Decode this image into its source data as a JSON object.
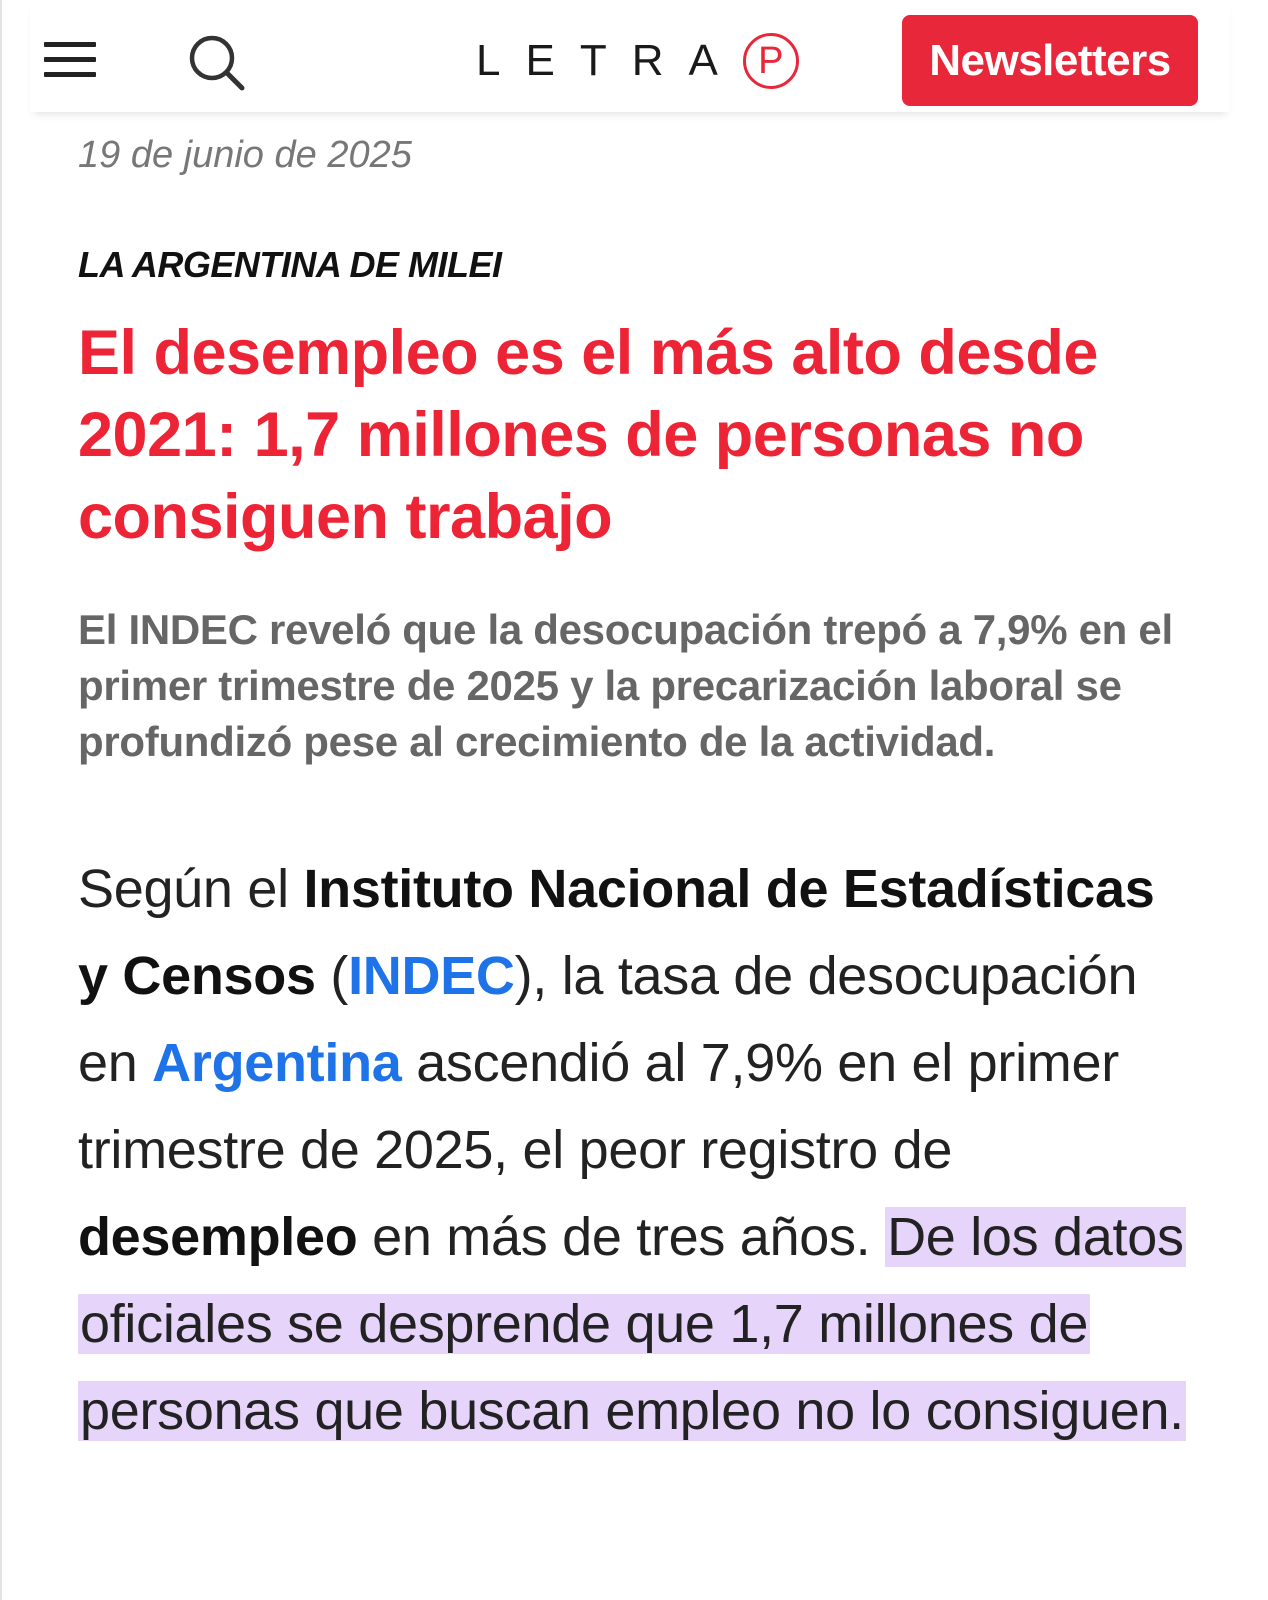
{
  "header": {
    "menu_icon": "hamburger-menu-icon",
    "search_icon": "search-icon",
    "logo": {
      "word": "LETRA",
      "mark": "P",
      "brand_color": "#e8273b"
    },
    "newsletter_label": "Newsletters"
  },
  "article": {
    "date": "19 de junio de 2025",
    "kicker": "LA ARGENTINA DE MILEI",
    "headline": "El desempleo es el más alto desde 2021: 1,7 millones de personas no consiguen trabajo",
    "lede": "El INDEC reveló que la desocupación trepó a 7,9% en el primer trimestre de 2025 y la precarización laboral se profundizó pese al crecimiento de la actividad.",
    "body": {
      "p1": "Según el ",
      "institute": "Instituto Nacional de Estadísticas y Censos",
      "p2": " (",
      "indec_link": "INDEC",
      "p3": "), la tasa de desocupación en ",
      "argentina_link": "Argentina",
      "p4": " ascendió al 7,9% en el primer trimestre de 2025, el peor registro de ",
      "desempleo": "desempleo",
      "p5": " en más de tres años. ",
      "highlighted": "De los datos oficiales se desprende que 1,7 millones de personas que buscan empleo no lo consiguen."
    },
    "colors": {
      "headline": "#ec2436",
      "link": "#1f73e8",
      "highlight": "#e6d4fb"
    }
  }
}
